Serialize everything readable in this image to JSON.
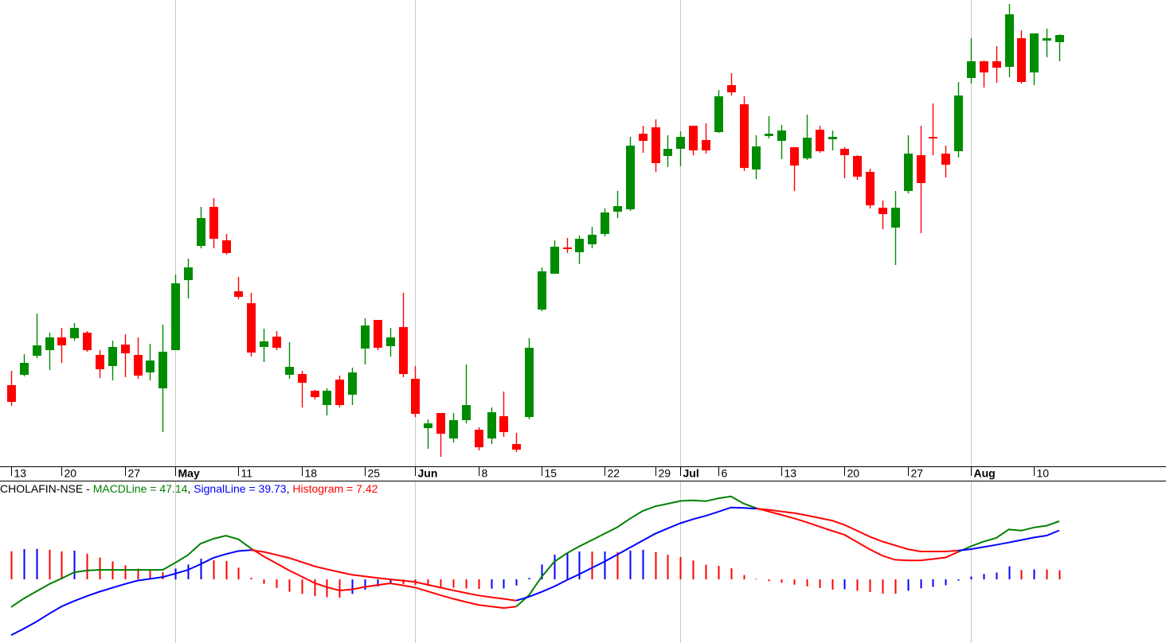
{
  "chart_data": [
    {
      "type": "candlestick",
      "categories": [
        "13",
        null,
        null,
        null,
        "20",
        null,
        null,
        null,
        null,
        "27",
        null,
        null,
        null,
        "May",
        null,
        null,
        null,
        null,
        "11",
        null,
        null,
        null,
        null,
        "18",
        null,
        null,
        null,
        null,
        "25",
        null,
        null,
        null,
        "Jun",
        null,
        null,
        null,
        null,
        "8",
        null,
        null,
        null,
        null,
        "15",
        null,
        null,
        null,
        null,
        "22",
        null,
        null,
        null,
        "29",
        null,
        "Jul",
        null,
        null,
        "6",
        null,
        null,
        null,
        null,
        "13",
        null,
        null,
        null,
        null,
        "20",
        null,
        null,
        null,
        null,
        "27",
        null,
        null,
        null,
        null,
        "Aug",
        null,
        null,
        null,
        null,
        "10",
        null,
        null
      ],
      "open": [
        116,
        129,
        153,
        160,
        176,
        175,
        182,
        154,
        140,
        167,
        154,
        132,
        112,
        160,
        248,
        291,
        340,
        298,
        234,
        219,
        164,
        177,
        129,
        130,
        109,
        91,
        123,
        104,
        162,
        198,
        165,
        189,
        124,
        62,
        81,
        49,
        72,
        60,
        49,
        77,
        42,
        76,
        211,
        256,
        289,
        283,
        293,
        306,
        334,
        337,
        432,
        440,
        404,
        413,
        442,
        424,
        434,
        493,
        469,
        387,
        429,
        423,
        415,
        401,
        437,
        425,
        413,
        404,
        384,
        339,
        314,
        360,
        405,
        428,
        407,
        410,
        502,
        523,
        523,
        516,
        552,
        509,
        549,
        547
      ],
      "high": [
        134,
        155,
        206,
        182,
        188,
        194,
        184,
        160,
        172,
        180,
        176,
        168,
        192,
        255,
        275,
        340,
        351,
        306,
        252,
        232,
        187,
        184,
        170,
        134,
        110,
        112,
        128,
        138,
        200,
        198,
        188,
        232,
        140,
        73,
        81,
        81,
        142,
        63,
        88,
        108,
        56,
        175,
        264,
        298,
        301,
        304,
        315,
        338,
        360,
        428,
        442,
        450,
        430,
        435,
        442,
        445,
        487,
        508,
        479,
        430,
        454,
        443,
        415,
        456,
        442,
        436,
        415,
        405,
        388,
        348,
        360,
        430,
        442,
        470,
        417,
        497,
        552,
        524,
        542,
        595,
        562,
        558,
        564,
        557
      ],
      "low": [
        90,
        127,
        150,
        135,
        144,
        172,
        158,
        125,
        122,
        126,
        124,
        122,
        57,
        160,
        225,
        288,
        288,
        280,
        224,
        152,
        145,
        160,
        124,
        88,
        98,
        78,
        88,
        91,
        142,
        160,
        152,
        126,
        76,
        36,
        26,
        44,
        68,
        34,
        42,
        51,
        32,
        73,
        209,
        256,
        282,
        268,
        288,
        303,
        326,
        335,
        408,
        384,
        390,
        391,
        405,
        407,
        433,
        480,
        385,
        375,
        426,
        400,
        360,
        399,
        408,
        411,
        376,
        374,
        338,
        312,
        267,
        357,
        307,
        405,
        377,
        402,
        495,
        490,
        496,
        503,
        495,
        493,
        528,
        523
      ],
      "close": [
        95,
        144,
        166,
        176,
        166,
        188,
        160,
        136,
        164,
        156,
        128,
        147,
        158,
        244,
        264,
        326,
        300,
        282,
        227,
        157,
        171,
        163,
        139,
        119,
        101,
        109,
        91,
        132,
        191,
        163,
        176,
        130,
        80,
        68,
        55,
        72,
        91,
        38,
        82,
        57,
        35,
        163,
        259,
        290,
        287,
        300,
        305,
        333,
        341,
        417,
        423,
        395,
        413,
        428,
        411,
        411,
        479,
        484,
        389,
        416,
        432,
        436,
        392,
        427,
        410,
        428,
        405,
        378,
        342,
        331,
        339,
        407,
        370,
        426,
        393,
        480,
        523,
        509,
        515,
        582,
        497,
        558,
        552,
        556
      ],
      "up_color": "#008c00",
      "down_color": "#ff0000",
      "ylim": [
        14,
        600
      ]
    },
    {
      "type": "macd",
      "title": "CHOLAFIN-NSE",
      "series": [
        {
          "name": "MACDLine",
          "color": "#008000",
          "values": [
            -22.4,
            -15.5,
            -9.7,
            -3.9,
            0.8,
            5.8,
            7.2,
            7.7,
            7.7,
            7.7,
            7.7,
            7.7,
            7.7,
            13.5,
            19.7,
            29.0,
            32.9,
            35.4,
            32.5,
            25.0,
            18.7,
            13.0,
            7.4,
            2.3,
            -2.9,
            -6.3,
            -9.0,
            -8.1,
            -6.1,
            -4.6,
            -3.2,
            -4.8,
            -6.6,
            -9.7,
            -12.8,
            -15.7,
            -18.3,
            -20.7,
            -22.0,
            -23.2,
            -22.1,
            -12.9,
            1.9,
            14.2,
            21.1,
            26.8,
            31.9,
            37.1,
            42.3,
            49.2,
            55.4,
            59.2,
            61.3,
            63.6,
            64.1,
            63.4,
            65.7,
            67.3,
            61.5,
            57.8,
            55.0,
            52.3,
            49.5,
            46.3,
            42.8,
            39.4,
            36.1,
            30.2,
            24.3,
            19.2,
            15.9,
            15.3,
            15.3,
            16.5,
            17.8,
            22.3,
            26.8,
            30.6,
            33.5,
            40.5,
            39.5,
            42.1,
            43.5,
            47.14
          ]
        },
        {
          "name": "SignalLine",
          "color": "#0000ff",
          "values": [
            -45.2,
            -40.0,
            -34.4,
            -27.9,
            -21.9,
            -17.5,
            -13.6,
            -10.0,
            -6.9,
            -3.8,
            -1.0,
            0.4,
            1.9,
            4.7,
            7.7,
            12.3,
            17.4,
            20.5,
            23.0,
            23.7,
            22.3,
            19.9,
            17.4,
            14.1,
            10.7,
            8.2,
            5.9,
            3.7,
            2.4,
            1.1,
            0.0,
            -1.0,
            -2.1,
            -4.4,
            -6.7,
            -8.9,
            -11.0,
            -13.0,
            -14.5,
            -15.8,
            -17.2,
            -14.1,
            -10.2,
            -5.8,
            -0.6,
            4.2,
            9.4,
            14.5,
            20.1,
            25.8,
            31.4,
            37.0,
            41.4,
            45.5,
            48.8,
            51.5,
            54.8,
            58.3,
            58.0,
            57.3,
            56.4,
            55.1,
            53.8,
            51.9,
            49.8,
            47.7,
            44.1,
            39.4,
            34.6,
            30.7,
            27.6,
            24.5,
            22.6,
            22.6,
            22.6,
            23.4,
            24.5,
            26.2,
            28.0,
            29.9,
            31.9,
            34.0,
            35.5,
            39.73
          ]
        },
        {
          "name": "Histogram",
          "color": "#ff0000",
          "values": [
            22.8,
            24.5,
            24.7,
            24.0,
            22.7,
            23.3,
            20.8,
            17.7,
            14.6,
            11.5,
            8.7,
            7.3,
            5.8,
            8.8,
            12.0,
            16.7,
            15.5,
            14.9,
            9.5,
            1.3,
            -3.6,
            -6.9,
            -10.0,
            -11.8,
            -13.6,
            -14.5,
            -14.9,
            -11.8,
            -8.5,
            -5.7,
            -3.2,
            -3.8,
            -4.5,
            -5.3,
            -6.1,
            -6.8,
            -7.3,
            -7.7,
            -7.5,
            -7.4,
            -4.9,
            1.2,
            12.1,
            20.0,
            21.7,
            22.6,
            22.5,
            22.6,
            22.2,
            23.4,
            24.0,
            22.2,
            19.9,
            18.1,
            15.3,
            11.9,
            10.9,
            9.0,
            3.5,
            0.5,
            -1.4,
            -2.8,
            -4.3,
            -5.6,
            -7.0,
            -8.3,
            -8.0,
            -9.2,
            -10.3,
            -11.5,
            -11.7,
            -9.2,
            -7.3,
            -6.1,
            -4.8,
            -1.1,
            2.3,
            4.4,
            5.5,
            10.6,
            7.6,
            8.1,
            8.0,
            7.42
          ]
        }
      ],
      "below_color": "#ff0000",
      "rising_color": "#0000ff",
      "ylim": [
        -51.6,
        79.4
      ]
    }
  ]
}
